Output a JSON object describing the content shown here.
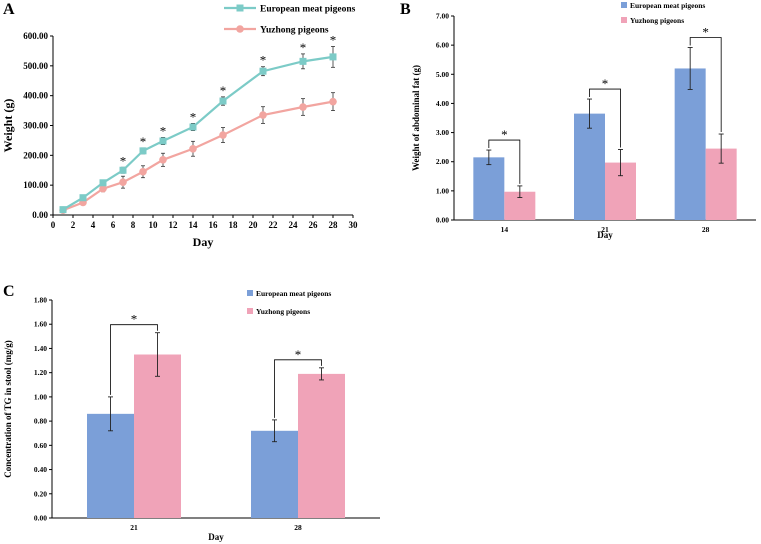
{
  "panels": {
    "A": {
      "letter": "A"
    },
    "B": {
      "letter": "B"
    },
    "C": {
      "letter": "C"
    }
  },
  "chart_data": [
    {
      "id": "A",
      "type": "line",
      "title": "",
      "xlabel": "Day",
      "ylabel": "Weight (g)",
      "xlim": [
        0,
        30
      ],
      "ylim": [
        0,
        600
      ],
      "x_ticks": [
        "0",
        "2",
        "4",
        "6",
        "8",
        "10",
        "12",
        "14",
        "16",
        "18",
        "20",
        "22",
        "24",
        "26",
        "28",
        "30"
      ],
      "y_ticks": [
        "0.00",
        "100.00",
        "200.00",
        "300.00",
        "400.00",
        "500.00",
        "600.00"
      ],
      "legend": "top-right",
      "x": [
        1,
        3,
        5,
        7,
        9,
        11,
        14,
        17,
        21,
        25,
        28
      ],
      "series": [
        {
          "name": "European meat pigeons",
          "color": "#7ccbc7",
          "marker": "square",
          "values": [
            18,
            58,
            108,
            150,
            215,
            248,
            295,
            382,
            482,
            515,
            530
          ],
          "errors": [
            4,
            6,
            8,
            10,
            10,
            12,
            12,
            14,
            15,
            25,
            35
          ]
        },
        {
          "name": "Yuzhong pigeons",
          "color": "#f2a5a0",
          "marker": "circle",
          "values": [
            16,
            42,
            88,
            110,
            145,
            185,
            222,
            268,
            335,
            362,
            380
          ],
          "errors": [
            4,
            8,
            10,
            20,
            20,
            22,
            25,
            25,
            28,
            28,
            30
          ]
        }
      ],
      "significance": [
        "",
        "",
        "",
        "*",
        "*",
        "*",
        "*",
        "*",
        "*",
        "*",
        "*"
      ]
    },
    {
      "id": "B",
      "type": "bar",
      "title": "",
      "xlabel": "Day",
      "ylabel": "Weight of abdominal fat (g)",
      "categories": [
        "14",
        "21",
        "28"
      ],
      "ylim": [
        0,
        7
      ],
      "y_ticks": [
        "0.00",
        "1.00",
        "2.00",
        "3.00",
        "4.00",
        "5.00",
        "6.00",
        "7.00"
      ],
      "legend": "top-right",
      "series": [
        {
          "name": "European meat pigeons",
          "color": "#7b9fd8",
          "values": [
            2.15,
            3.65,
            5.2
          ],
          "errors": [
            0.25,
            0.5,
            0.72
          ]
        },
        {
          "name": "Yuzhong pigeons",
          "color": "#f0a3b8",
          "values": [
            0.97,
            1.97,
            2.45
          ],
          "errors": [
            0.2,
            0.45,
            0.5
          ]
        }
      ],
      "significance": [
        "*",
        "*",
        "*"
      ]
    },
    {
      "id": "C",
      "type": "bar",
      "title": "",
      "xlabel": "Day",
      "ylabel": "Concentration of TG in stool (mg/g)",
      "categories": [
        "21",
        "28"
      ],
      "ylim": [
        0,
        1.8
      ],
      "y_ticks": [
        "0.00",
        "0.20",
        "0.40",
        "0.60",
        "0.80",
        "1.00",
        "1.20",
        "1.40",
        "1.60",
        "1.80"
      ],
      "legend": "top-right",
      "series": [
        {
          "name": "European meat pigeons",
          "color": "#7b9fd8",
          "values": [
            0.86,
            0.72
          ],
          "errors": [
            0.14,
            0.09
          ]
        },
        {
          "name": "Yuzhong pigeons",
          "color": "#f0a3b8",
          "values": [
            1.35,
            1.19
          ],
          "errors": [
            0.18,
            0.05
          ]
        }
      ],
      "significance": [
        "*",
        "*"
      ]
    }
  ]
}
